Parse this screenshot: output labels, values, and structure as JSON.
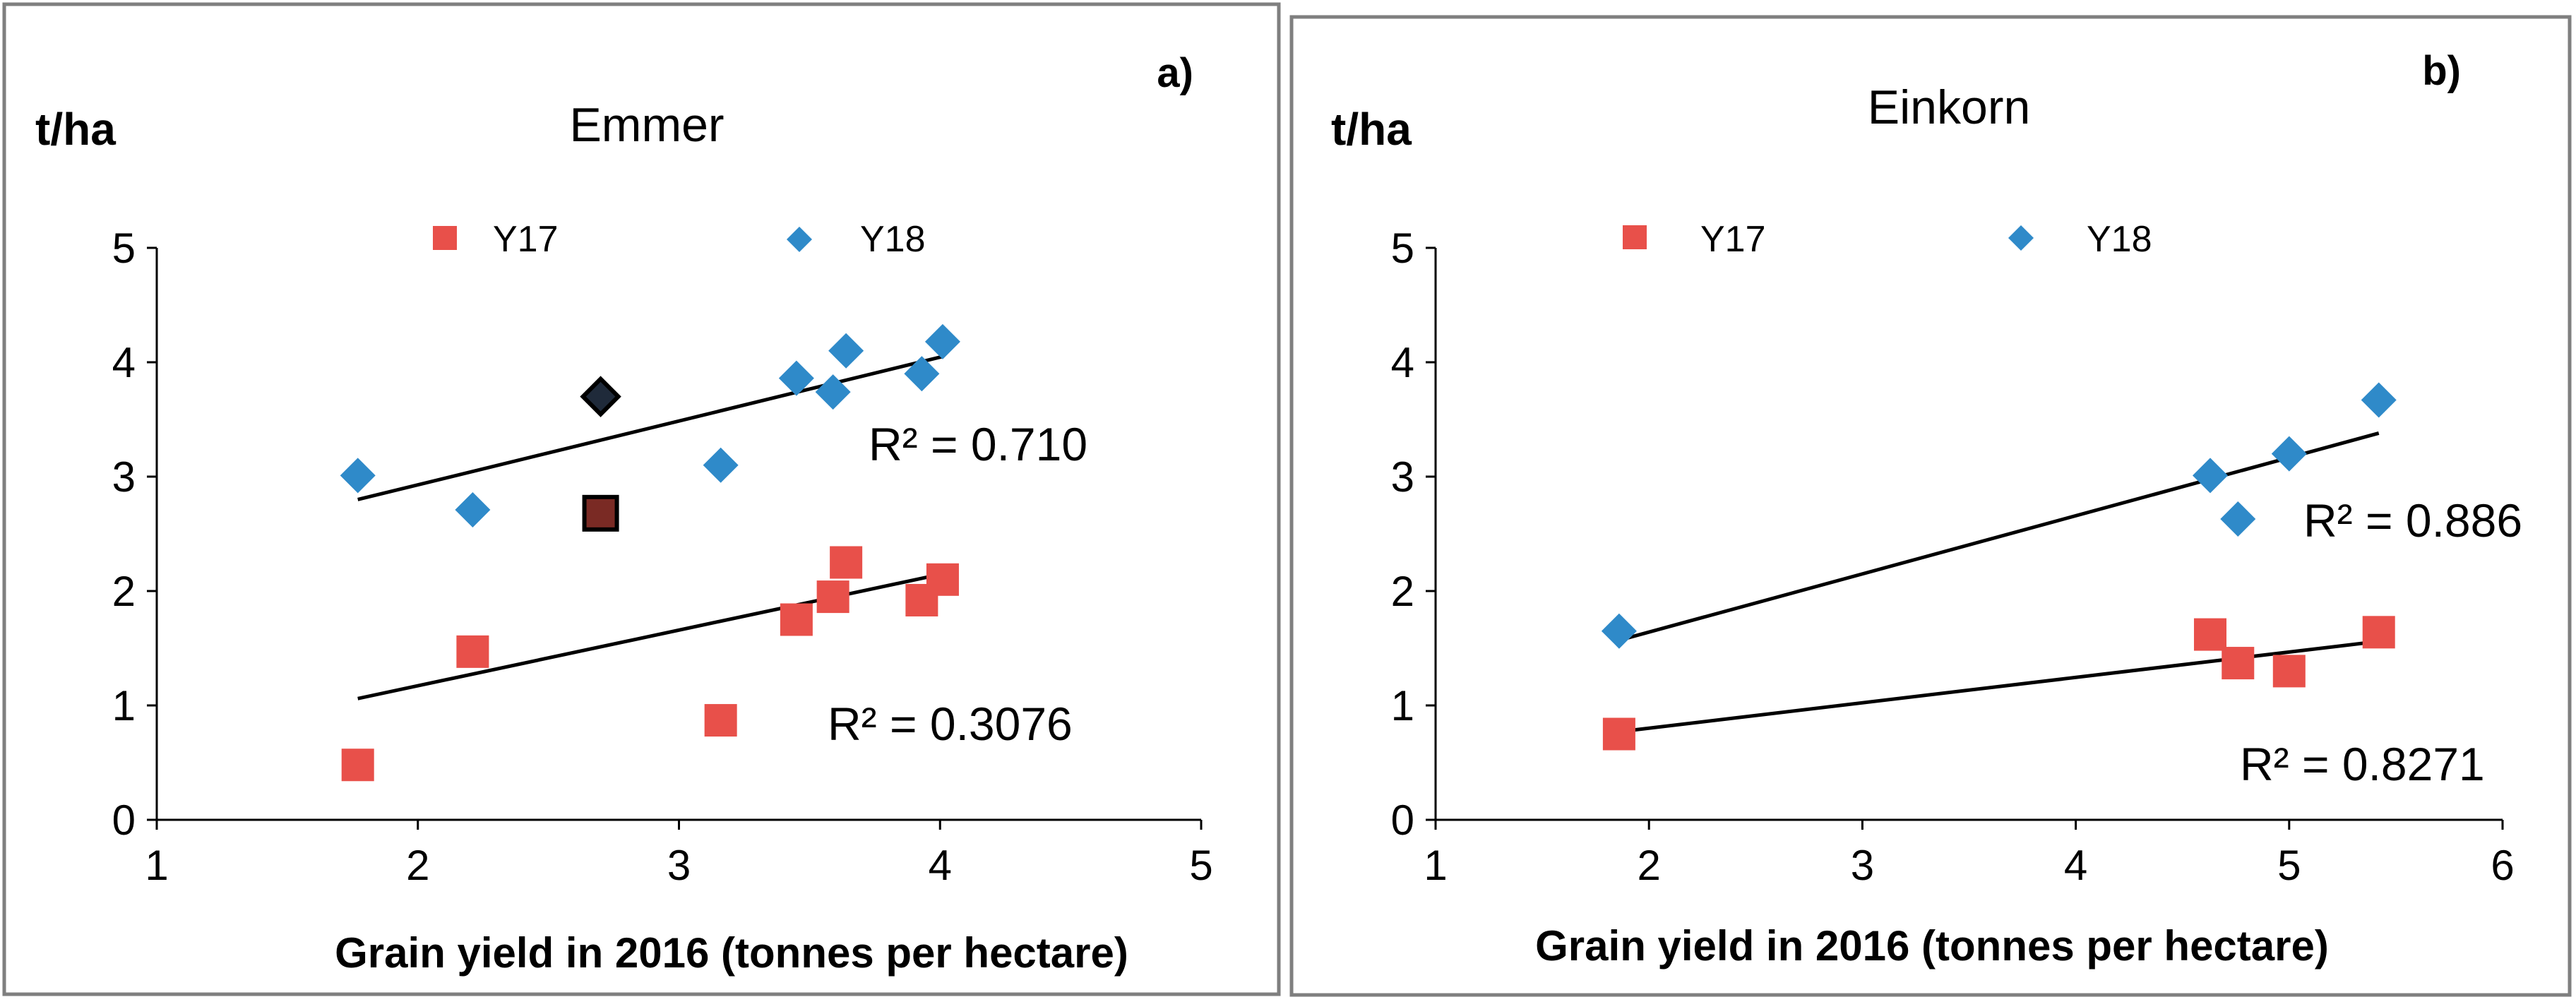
{
  "chart_data": [
    {
      "type": "scatter",
      "panel_label": "a)",
      "title": "Emmer",
      "ylabel": "t/ha",
      "xlabel": "Grain yield in 2016 (tonnes per hectare)",
      "xlim": [
        1,
        5
      ],
      "ylim": [
        0,
        5
      ],
      "xticks": [
        1,
        2,
        3,
        4,
        5
      ],
      "yticks": [
        0,
        1,
        2,
        3,
        4,
        5
      ],
      "grid": false,
      "legend": [
        "Y17",
        "Y18"
      ],
      "series": [
        {
          "name": "Y17",
          "marker": "square",
          "color": "#e8504a",
          "points": [
            {
              "x": 1.77,
              "y": 0.48
            },
            {
              "x": 2.21,
              "y": 1.47
            },
            {
              "x": 3.16,
              "y": 0.87
            },
            {
              "x": 3.45,
              "y": 1.75
            },
            {
              "x": 3.59,
              "y": 1.95
            },
            {
              "x": 3.64,
              "y": 2.25
            },
            {
              "x": 3.93,
              "y": 1.92
            },
            {
              "x": 4.01,
              "y": 2.1
            }
          ],
          "trendline": {
            "x": [
              1.77,
              4.01
            ],
            "y": [
              1.06,
              2.15
            ]
          },
          "r2": "R² = 0.3076"
        },
        {
          "name": "Y18",
          "marker": "diamond",
          "color": "#2f8ac9",
          "points": [
            {
              "x": 1.77,
              "y": 3.01
            },
            {
              "x": 2.21,
              "y": 2.71
            },
            {
              "x": 3.16,
              "y": 3.1
            },
            {
              "x": 3.45,
              "y": 3.86
            },
            {
              "x": 3.59,
              "y": 3.74
            },
            {
              "x": 3.64,
              "y": 4.1
            },
            {
              "x": 3.93,
              "y": 3.9
            },
            {
              "x": 4.01,
              "y": 4.18
            }
          ],
          "trendline": {
            "x": [
              1.77,
              4.01
            ],
            "y": [
              2.8,
              4.05
            ]
          },
          "r2": "R² = 0.710"
        }
      ],
      "highlighted_points": [
        {
          "series": "Y18",
          "marker": "diamond",
          "color": "#1f2a3a",
          "x": 2.7,
          "y": 3.7
        },
        {
          "series": "Y17",
          "marker": "square",
          "color": "#7a2a24",
          "x": 2.7,
          "y": 2.68
        }
      ]
    },
    {
      "type": "scatter",
      "panel_label": "b)",
      "title": "Einkorn",
      "ylabel": "t/ha",
      "xlabel": "Grain yield in 2016 (tonnes per hectare)",
      "xlim": [
        1,
        6
      ],
      "ylim": [
        0,
        5
      ],
      "xticks": [
        1,
        2,
        3,
        4,
        5,
        6
      ],
      "yticks": [
        0,
        1,
        2,
        3,
        4,
        5
      ],
      "grid": false,
      "legend": [
        "Y17",
        "Y18"
      ],
      "series": [
        {
          "name": "Y17",
          "marker": "square",
          "color": "#e8504a",
          "points": [
            {
              "x": 1.86,
              "y": 0.75
            },
            {
              "x": 4.63,
              "y": 1.62
            },
            {
              "x": 4.76,
              "y": 1.37
            },
            {
              "x": 5.0,
              "y": 1.3
            },
            {
              "x": 5.42,
              "y": 1.64
            }
          ],
          "trendline": {
            "x": [
              1.86,
              5.42
            ],
            "y": [
              0.77,
              1.56
            ]
          },
          "r2": "R² = 0.8271"
        },
        {
          "name": "Y18",
          "marker": "diamond",
          "color": "#2f8ac9",
          "points": [
            {
              "x": 1.86,
              "y": 1.65
            },
            {
              "x": 4.63,
              "y": 3.01
            },
            {
              "x": 4.76,
              "y": 2.63
            },
            {
              "x": 5.0,
              "y": 3.2
            },
            {
              "x": 5.42,
              "y": 3.67
            }
          ],
          "trendline": {
            "x": [
              1.86,
              5.42
            ],
            "y": [
              1.57,
              3.38
            ]
          },
          "r2": "R² = 0.886"
        }
      ],
      "highlighted_points": []
    }
  ]
}
